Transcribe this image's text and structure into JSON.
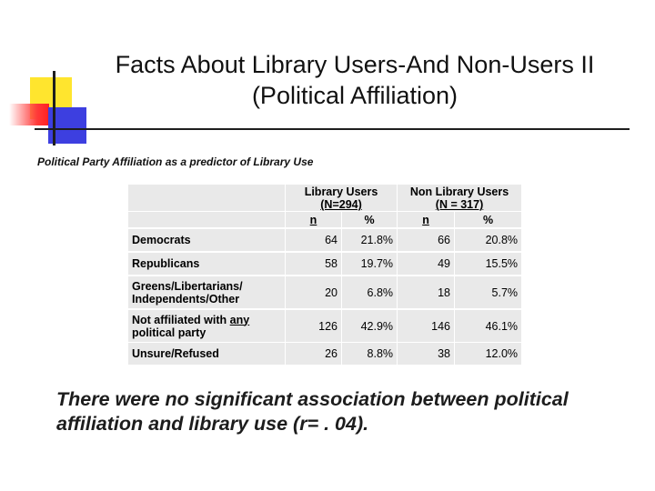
{
  "slide": {
    "title_line1": "Facts About Library Users-And Non-Users II",
    "title_line2": "(Political Affiliation)",
    "caption": "Political Party Affiliation as a predictor of Library Use",
    "conclusion": "There were no significant association between political affiliation and library use (r= . 04)."
  },
  "table": {
    "groups": [
      {
        "label": "Library Users",
        "n_label": "(N=294)"
      },
      {
        "label": "Non Library Users",
        "n_label": "(N = 317)"
      }
    ],
    "sub_headers": [
      "n",
      "%",
      "n",
      "%"
    ],
    "rows": [
      {
        "label_line1": "Democrats",
        "label_line2": "",
        "label_underline": "",
        "values": [
          "64",
          "21.8%",
          "66",
          "20.8%"
        ]
      },
      {
        "label_line1": "Republicans",
        "label_line2": "",
        "label_underline": "",
        "values": [
          "58",
          "19.7%",
          "49",
          "15.5%"
        ]
      },
      {
        "label_line1": "Greens/Libertarians/",
        "label_line2": "Independents/Other",
        "label_underline": "",
        "values": [
          "20",
          "6.8%",
          "18",
          "5.7%"
        ]
      },
      {
        "label_line1": "Not affiliated with ",
        "label_underline": "any",
        "label_line2": "political party",
        "values": [
          "126",
          "42.9%",
          "146",
          "46.1%"
        ]
      },
      {
        "label_line1": "Unsure/Refused",
        "label_line2": "",
        "label_underline": "",
        "values": [
          "26",
          "8.8%",
          "38",
          "12.0%"
        ]
      }
    ]
  }
}
